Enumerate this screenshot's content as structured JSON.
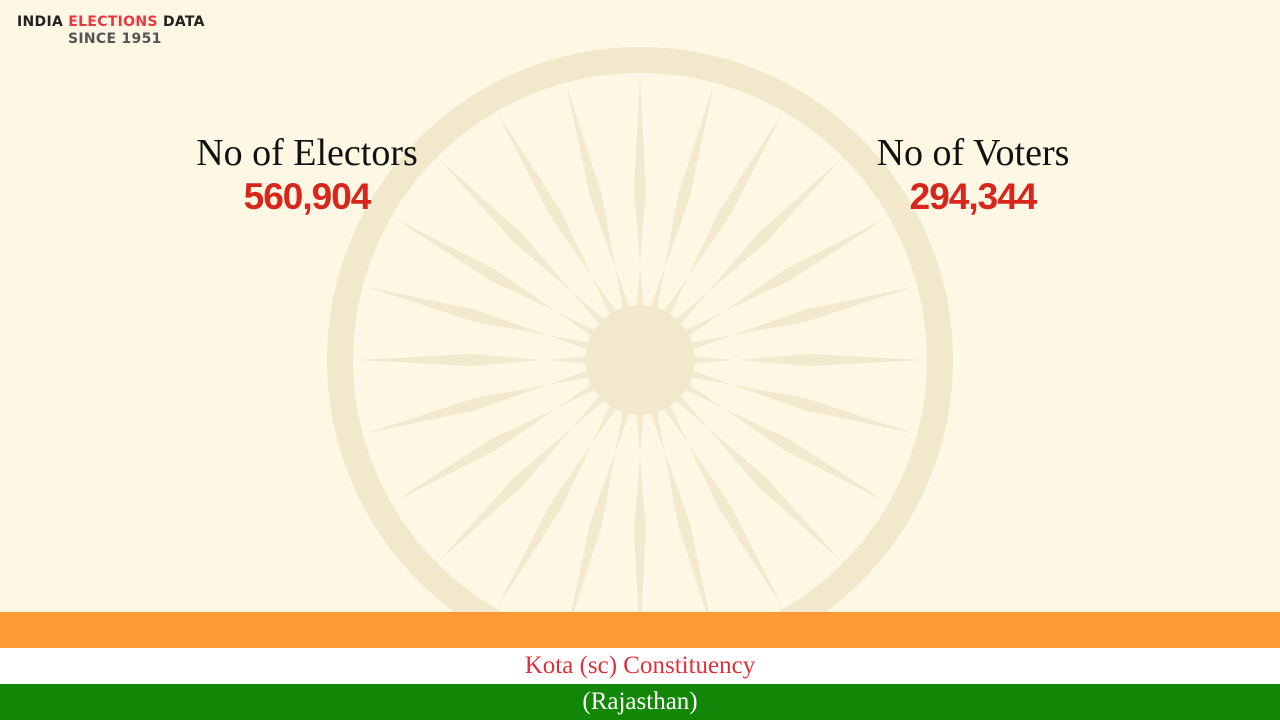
{
  "logo": {
    "word1": "INDIA",
    "word2": "ELECTIONS",
    "word3": "DATA",
    "tagline": "SINCE 1951"
  },
  "stats": [
    {
      "label": "No of Electors",
      "value": "560,904"
    },
    {
      "label": "No of Voters",
      "value": "294,344"
    }
  ],
  "footer": {
    "constituency": "Kota (sc) Constituency",
    "state": "(Rajasthan)"
  }
}
